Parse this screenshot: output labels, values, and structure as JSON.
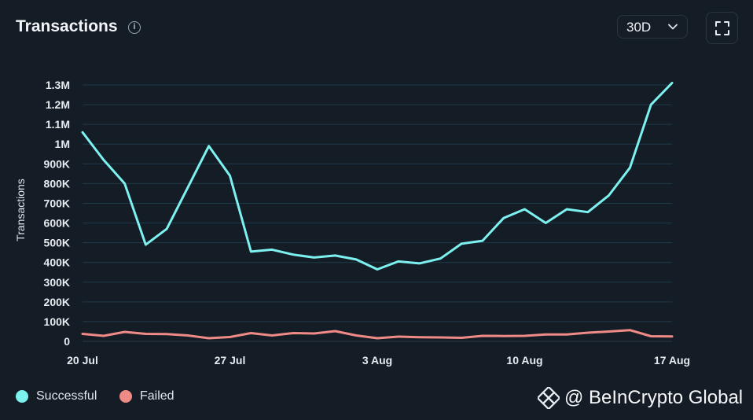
{
  "header": {
    "title": "Transactions",
    "info_icon": "info-icon",
    "range_value": "30D",
    "fullscreen_icon": "fullscreen-icon"
  },
  "colors": {
    "background": "#141c25",
    "successful": "#7df0f0",
    "failed": "#ef8a86",
    "grid": "#1e3a4a"
  },
  "chart_data": {
    "type": "line",
    "title": "Transactions",
    "xlabel": "",
    "ylabel": "Transactions",
    "ylim": [
      0,
      1300000
    ],
    "yticks": [
      0,
      100000,
      200000,
      300000,
      400000,
      500000,
      600000,
      700000,
      800000,
      900000,
      1000000,
      1100000,
      1200000,
      1300000
    ],
    "ytick_labels": [
      "0",
      "100K",
      "200K",
      "300K",
      "400K",
      "500K",
      "600K",
      "700K",
      "800K",
      "900K",
      "1M",
      "1.1M",
      "1.2M",
      "1.3M"
    ],
    "x_tick_labels": [
      {
        "index": 0,
        "label": "20 Jul"
      },
      {
        "index": 7,
        "label": "27 Jul"
      },
      {
        "index": 14,
        "label": "3 Aug"
      },
      {
        "index": 21,
        "label": "10 Aug"
      },
      {
        "index": 28,
        "label": "17 Aug"
      }
    ],
    "x_count": 29,
    "series": [
      {
        "name": "Successful",
        "color": "#7df0f0",
        "values": [
          1060000,
          920000,
          800000,
          490000,
          570000,
          780000,
          990000,
          840000,
          455000,
          465000,
          440000,
          425000,
          435000,
          415000,
          365000,
          405000,
          395000,
          420000,
          495000,
          510000,
          625000,
          670000,
          600000,
          670000,
          655000,
          740000,
          880000,
          1200000,
          1310000
        ]
      },
      {
        "name": "Failed",
        "color": "#ef8a86",
        "values": [
          38000,
          28000,
          48000,
          38000,
          37000,
          30000,
          16000,
          22000,
          42000,
          30000,
          42000,
          40000,
          52000,
          30000,
          16000,
          24000,
          21000,
          20000,
          18000,
          28000,
          27000,
          28000,
          35000,
          35000,
          44000,
          50000,
          57000,
          26000,
          25000
        ]
      }
    ],
    "grid": true,
    "legend": "bottom-left"
  },
  "legend": {
    "successful_label": "Successful",
    "failed_label": "Failed"
  },
  "watermark": {
    "text": "@ BeInCrypto Global",
    "logo_icon": "beincrypto-logo-icon"
  }
}
